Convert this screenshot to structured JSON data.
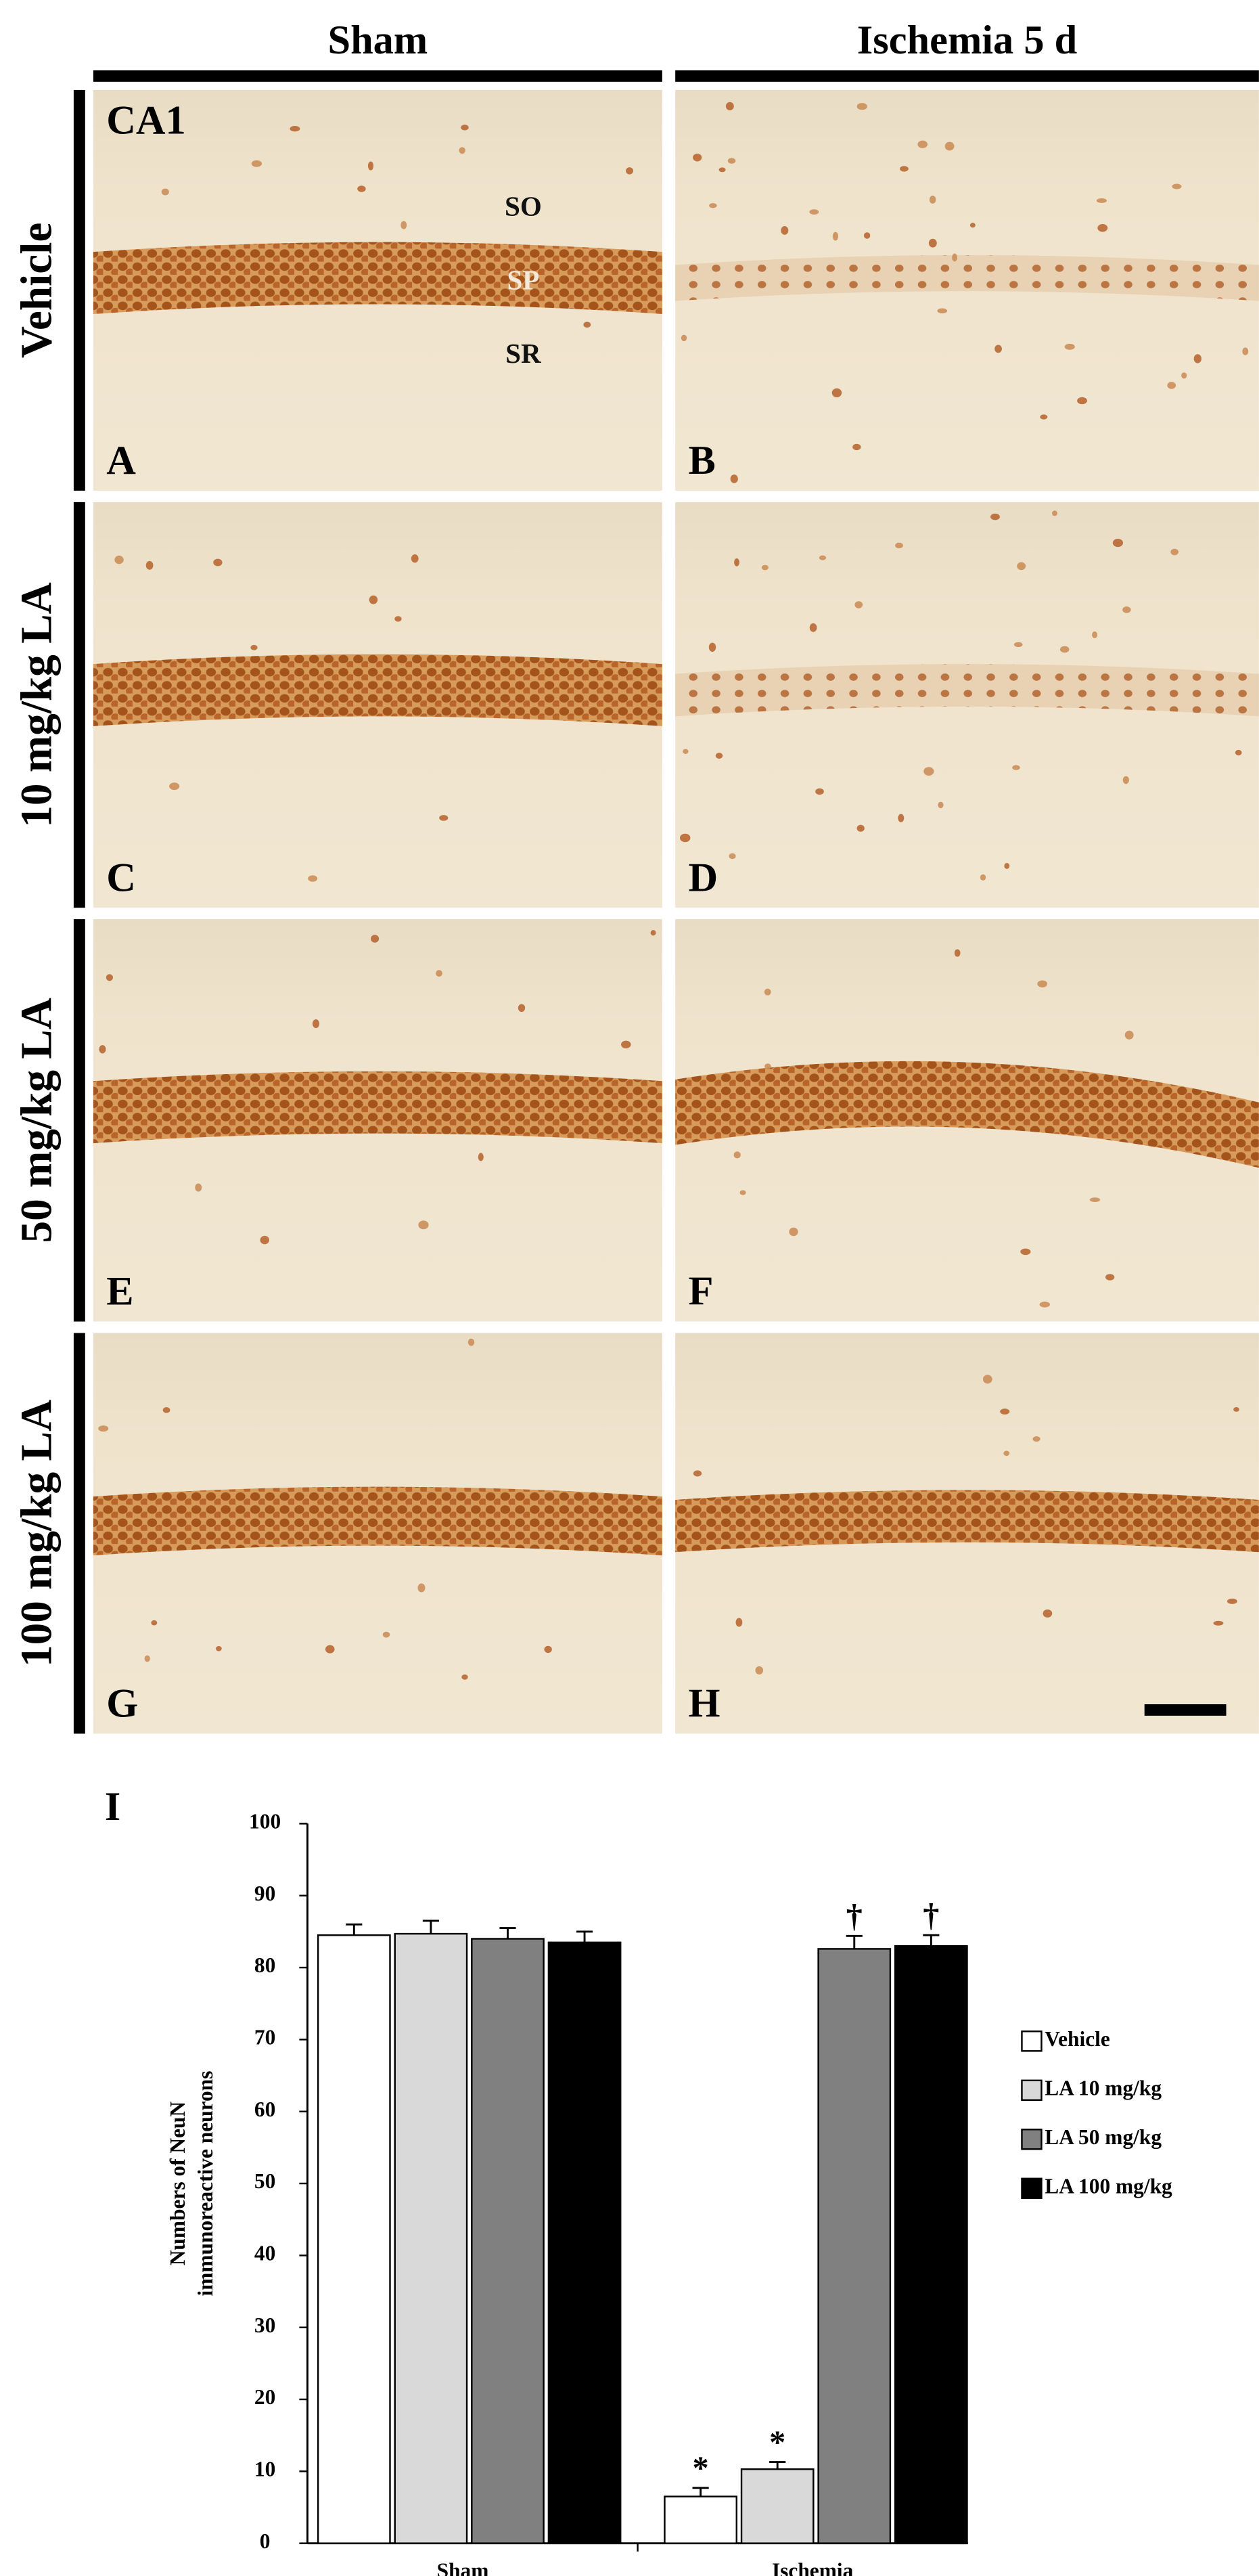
{
  "figure": {
    "column_headers": [
      "Sham",
      "Ischemia 5 d"
    ],
    "row_labels": [
      "Vehicle",
      "10 mg/kg LA",
      "50 mg/kg LA",
      "100 mg/kg LA"
    ],
    "panel_letters": [
      "A",
      "B",
      "C",
      "D",
      "E",
      "F",
      "G",
      "H"
    ],
    "region_label": "CA1",
    "layer_labels": [
      "SO",
      "SP",
      "SR"
    ],
    "chart_letter": "I"
  },
  "chart_data": {
    "type": "bar",
    "y_label": [
      "Numbers of NeuN",
      "immunoreactive neurons"
    ],
    "categories": [
      "Sham",
      "Ischemia"
    ],
    "series": [
      {
        "name": "Vehicle",
        "color": "#ffffff",
        "values": [
          84.5,
          6.5
        ],
        "errors": [
          1.5,
          1.2
        ],
        "marks": [
          null,
          "*"
        ]
      },
      {
        "name": "LA 10 mg/kg",
        "color": "#d9d9d9",
        "values": [
          84.7,
          10.3
        ],
        "errors": [
          1.8,
          1.0
        ],
        "marks": [
          null,
          "*"
        ]
      },
      {
        "name": "LA 50 mg/kg",
        "color": "#808080",
        "values": [
          84.0,
          82.6
        ],
        "errors": [
          1.5,
          1.8
        ],
        "marks": [
          null,
          "†"
        ]
      },
      {
        "name": "LA 100 mg/kg",
        "color": "#000000",
        "values": [
          83.5,
          83.0
        ],
        "errors": [
          1.5,
          1.5
        ],
        "marks": [
          null,
          "†"
        ]
      }
    ],
    "ylim": [
      0,
      100
    ],
    "yticks": [
      0,
      10,
      20,
      30,
      40,
      50,
      60,
      70,
      80,
      90,
      100
    ],
    "grid": false,
    "legend": "right"
  }
}
